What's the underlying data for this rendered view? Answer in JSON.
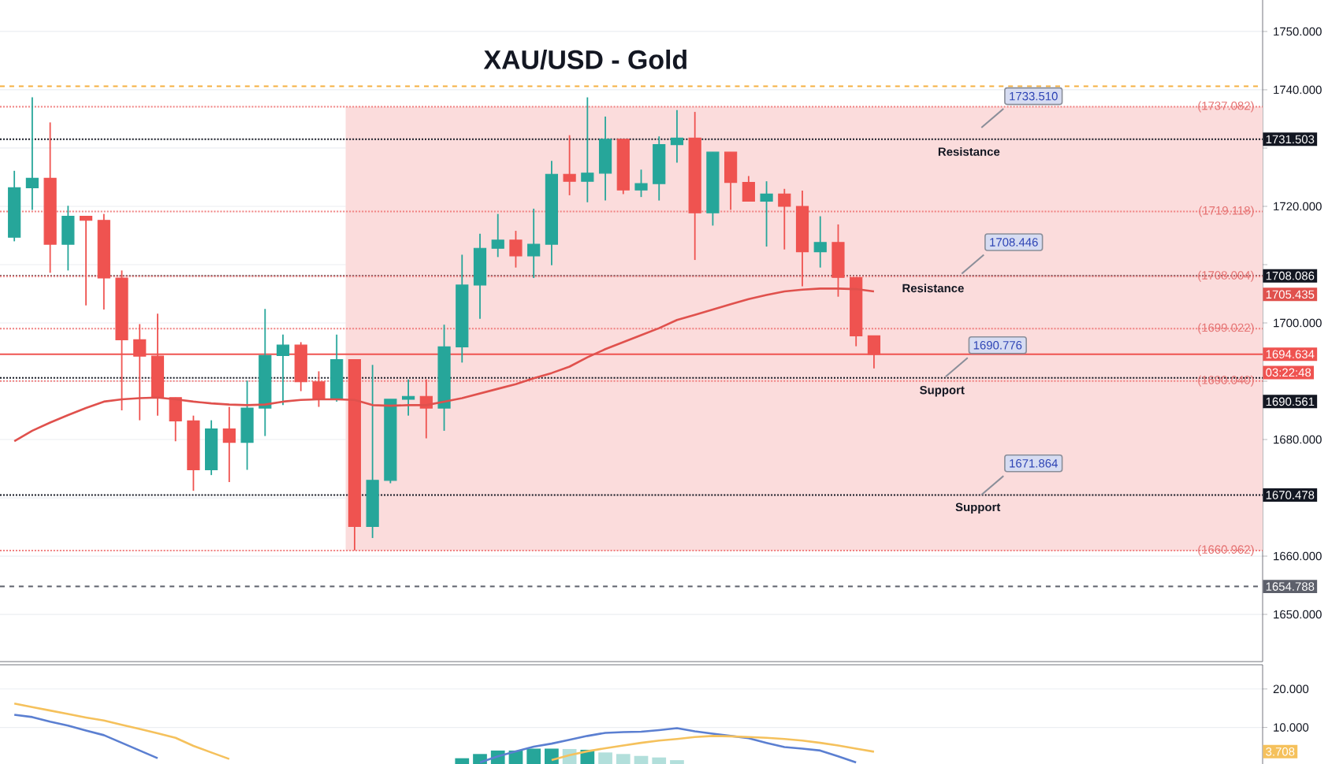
{
  "chart_data": [
    {
      "type": "candlestick",
      "title": "XAU/USD - Gold",
      "categories": [
        null,
        null,
        null,
        null,
        null,
        null,
        null,
        null,
        null,
        null,
        null,
        null,
        null,
        null,
        null,
        null,
        null,
        null,
        null,
        null,
        null,
        null,
        null,
        null,
        null,
        null,
        null,
        null,
        null,
        null,
        null,
        null,
        null,
        null,
        null,
        null,
        null,
        null,
        null,
        null,
        null,
        null,
        null,
        null,
        null,
        null,
        null,
        null,
        null,
        null,
        null,
        null,
        null,
        null,
        null,
        null,
        null,
        null,
        null,
        null,
        null,
        null,
        null,
        null,
        null,
        null,
        null,
        null,
        null,
        null
      ],
      "ohlc": [
        [
          1714.7,
          1726.1,
          1714.0,
          1723.2
        ],
        [
          1723.2,
          1738.7,
          1719.4,
          1724.8
        ],
        [
          1724.8,
          1734.4,
          1708.6,
          1713.5
        ],
        [
          1713.5,
          1720.1,
          1709.0,
          1718.3
        ],
        [
          1718.3,
          1718.3,
          1703.0,
          1717.6
        ],
        [
          1717.6,
          1718.7,
          1702.3,
          1707.7
        ],
        [
          1707.7,
          1709.0,
          1685.0,
          1697.1
        ],
        [
          1697.1,
          1699.8,
          1683.3,
          1694.3
        ],
        [
          1694.3,
          1701.6,
          1684.1,
          1687.2
        ],
        [
          1687.2,
          1687.2,
          1679.7,
          1683.2
        ],
        [
          1683.2,
          1684.1,
          1671.2,
          1674.8
        ],
        [
          1674.8,
          1683.3,
          1673.9,
          1681.8
        ],
        [
          1681.8,
          1685.6,
          1672.7,
          1679.5
        ],
        [
          1679.5,
          1690.1,
          1674.8,
          1685.4
        ],
        [
          1685.4,
          1702.4,
          1680.6,
          1694.4
        ],
        [
          1694.4,
          1698.0,
          1685.9,
          1696.2
        ],
        [
          1696.2,
          1696.7,
          1688.3,
          1689.9
        ],
        [
          1689.9,
          1691.7,
          1685.6,
          1686.9
        ],
        [
          1686.9,
          1698.0,
          1686.5,
          1693.7
        ],
        [
          1693.7,
          1693.7,
          1661.0,
          1665.1
        ],
        [
          1665.1,
          1692.8,
          1663.1,
          1673.0
        ],
        [
          1673.0,
          1686.9,
          1672.5,
          1686.9
        ],
        [
          1686.9,
          1690.3,
          1684.1,
          1687.4
        ],
        [
          1687.4,
          1690.3,
          1680.2,
          1685.4
        ],
        [
          1685.4,
          1699.7,
          1681.5,
          1695.9
        ],
        [
          1695.9,
          1711.7,
          1693.2,
          1706.5
        ],
        [
          1706.5,
          1715.3,
          1700.7,
          1712.8
        ],
        [
          1712.8,
          1718.7,
          1711.3,
          1714.2
        ],
        [
          1714.2,
          1715.8,
          1709.5,
          1711.5
        ],
        [
          1711.5,
          1719.6,
          1707.7,
          1713.5
        ],
        [
          1713.5,
          1727.8,
          1709.9,
          1725.5
        ],
        [
          1725.5,
          1732.2,
          1721.9,
          1724.3
        ],
        [
          1724.3,
          1738.7,
          1720.7,
          1725.7
        ],
        [
          1725.7,
          1735.4,
          1721.0,
          1731.5
        ],
        [
          1731.5,
          1731.5,
          1722.1,
          1722.8
        ],
        [
          1722.8,
          1726.3,
          1721.6,
          1723.9
        ],
        [
          1723.9,
          1732.0,
          1721.0,
          1730.6
        ],
        [
          1730.6,
          1736.5,
          1727.5,
          1731.7
        ],
        [
          1731.7,
          1736.2,
          1710.8,
          1718.9
        ],
        [
          1718.9,
          1729.3,
          1716.7,
          1729.3
        ],
        [
          1729.3,
          1729.3,
          1719.4,
          1724.1
        ],
        [
          1724.1,
          1725.2,
          1720.9,
          1720.9
        ],
        [
          1720.9,
          1724.3,
          1713.1,
          1722.1
        ],
        [
          1722.1,
          1723.0,
          1712.6,
          1720.0
        ],
        [
          1720.0,
          1722.7,
          1706.3,
          1712.2
        ],
        [
          1712.2,
          1718.3,
          1709.5,
          1713.8
        ],
        [
          1713.8,
          1716.9,
          1704.5,
          1707.8
        ],
        [
          1707.8,
          1707.8,
          1696.0,
          1697.8
        ],
        [
          1697.8,
          1697.8,
          1692.2,
          1694.6
        ],
        null,
        null,
        null,
        null,
        null,
        null,
        null,
        null,
        null,
        null,
        null,
        null,
        null,
        null,
        null,
        null,
        null,
        null,
        null,
        null,
        null
      ],
      "series": [
        {
          "type": "line",
          "color": "#e0514d",
          "values": [
            1679.7,
            1681.5,
            1682.9,
            1684.2,
            1685.4,
            1686.5,
            1686.9,
            1687.1,
            1687.2,
            1686.9,
            1686.5,
            1686.2,
            1686.0,
            1685.9,
            1686.0,
            1686.5,
            1686.8,
            1686.9,
            1686.9,
            1686.8,
            1685.9,
            1685.8,
            1685.9,
            1685.9,
            1686.5,
            1687.1,
            1687.9,
            1688.7,
            1689.5,
            1690.5,
            1691.4,
            1692.5,
            1694.1,
            1695.5,
            1696.7,
            1697.9,
            1699.1,
            1700.5,
            1701.4,
            1702.3,
            1703.2,
            1704.1,
            1704.8,
            1705.4,
            1705.7,
            1705.9,
            1705.9,
            1705.8,
            1705.4,
            null,
            null,
            null,
            null,
            null,
            null,
            null,
            null,
            null,
            null,
            null,
            null,
            null,
            null,
            null,
            null,
            null,
            null,
            null,
            null,
            null
          ]
        }
      ],
      "ylim": [
        1641.9,
        1755.4
      ],
      "yticks": [
        {
          "value": 1650,
          "label": "1650.000"
        },
        {
          "value": 1660,
          "label": "1660.000"
        },
        {
          "value": 1670,
          "label": null
        },
        {
          "value": 1680,
          "label": "1680.000"
        },
        {
          "value": 1690,
          "label": null
        },
        {
          "value": 1700,
          "label": "1700.000"
        },
        {
          "value": 1710,
          "label": null
        },
        {
          "value": 1720,
          "label": "1720.000"
        },
        {
          "value": 1730,
          "label": null
        },
        {
          "value": 1740,
          "label": "1740.000"
        },
        {
          "value": 1750,
          "label": "1750.000"
        }
      ],
      "grid": "y",
      "tick_labels": "y",
      "bands": [
        {
          "axis": "y",
          "from": 1660.962,
          "to": 1737.082,
          "color": "#fbdcdc"
        }
      ],
      "ref_lines": [
        {
          "axis": "y",
          "value": 1731.503,
          "label": "1731.503",
          "color": "#131722",
          "line_style": "dotted"
        },
        {
          "axis": "y",
          "value": 1708.086,
          "label": "1708.086",
          "color": "#131722",
          "line_style": "dotted"
        },
        {
          "axis": "y",
          "value": 1690.561,
          "label": "1690.561",
          "color": "#131722",
          "line_style": "dotted"
        },
        {
          "axis": "y",
          "value": 1670.478,
          "label": "1670.478",
          "color": "#131722",
          "line_style": "dotted"
        },
        {
          "axis": "y",
          "value": 1694.634,
          "label": "1694.634",
          "color": "#ef5350",
          "line_style": "solid"
        },
        {
          "axis": "y",
          "value": 1654.788,
          "label": "1654.788",
          "color": "#5d606b",
          "line_style": "dashed"
        },
        {
          "axis": "y",
          "value": 1740.6,
          "color": "#f5b041",
          "line_style": "dashed"
        },
        {
          "axis": "y",
          "value": 1737.082,
          "color": "#f08080",
          "line_style": "dotted"
        },
        {
          "axis": "y",
          "value": 1719.118,
          "color": "#f08080",
          "line_style": "dotted"
        },
        {
          "axis": "y",
          "value": 1708.004,
          "color": "#f08080",
          "line_style": "dotted"
        },
        {
          "axis": "y",
          "value": 1699.022,
          "color": "#f08080",
          "line_style": "dotted"
        },
        {
          "axis": "y",
          "value": 1690.04,
          "color": "#f08080",
          "line_style": "dotted"
        },
        {
          "axis": "y",
          "value": 1660.962,
          "color": "#f08080",
          "line_style": "dotted"
        }
      ],
      "annotations": [
        "1733.510",
        {
          "text": "1708.446",
          "y": 1708.446
        },
        {
          "text": "1690.776",
          "y": 1690.776
        },
        "1671.864",
        {
          "text": "Resistance",
          "y": 1731.503
        },
        {
          "text": "Resistance",
          "y": 1708.086
        },
        {
          "text": "Support",
          "y": 1690.561
        },
        {
          "text": "Support",
          "y": 1670.478
        },
        {
          "text": "(1737.082)",
          "y": 1737.082
        },
        {
          "text": "(1719.118)",
          "y": 1719.118
        },
        {
          "text": "(1708.004)",
          "y": 1708.004
        },
        {
          "text": "(1699.022)",
          "y": 1699.022
        },
        {
          "text": "(1690.040)",
          "y": 1690.04
        },
        {
          "text": "(1660.962)",
          "y": 1660.962
        },
        "1705.435",
        "03:22:48"
      ]
    },
    {
      "type": "bar",
      "categories": [
        null,
        null,
        null,
        null,
        null,
        null,
        null,
        null,
        null,
        null,
        null,
        null,
        null,
        null,
        null,
        null,
        null,
        null,
        null,
        null,
        null,
        null,
        null,
        null,
        null,
        null,
        null,
        null,
        null,
        null,
        null,
        null,
        null,
        null,
        null,
        null,
        null,
        null,
        null,
        null,
        null,
        null,
        null,
        null,
        null,
        null,
        null,
        null,
        null,
        null,
        null,
        null,
        null,
        null,
        null,
        null,
        null,
        null,
        null,
        null,
        null,
        null,
        null,
        null,
        null,
        null,
        null,
        null,
        null,
        null
      ],
      "series": [
        {
          "type": "bar",
          "colors": [
            null,
            null,
            null,
            null,
            null,
            null,
            null,
            null,
            null,
            null,
            null,
            null,
            null,
            null,
            null,
            null,
            null,
            null,
            null,
            null,
            null,
            null,
            null,
            null,
            null,
            "#26a69a",
            "#26a69a",
            "#26a69a",
            "#26a69a",
            "#26a69a",
            "#26a69a",
            "#b2dfdb",
            "#26a69a",
            "#b2dfdb",
            "#b2dfdb",
            "#b2dfdb",
            "#b2dfdb",
            "#b2dfdb",
            null,
            null,
            null,
            null,
            null,
            null,
            null,
            null,
            null,
            null,
            null,
            null,
            null,
            null,
            null,
            null,
            null,
            null,
            null,
            null,
            null,
            null,
            null,
            null,
            null,
            null,
            null,
            null,
            null,
            null,
            null,
            null
          ],
          "values": [
            null,
            null,
            null,
            null,
            null,
            null,
            null,
            null,
            null,
            null,
            null,
            null,
            null,
            null,
            null,
            null,
            null,
            null,
            null,
            null,
            null,
            null,
            null,
            null,
            null,
            2.0,
            3.1,
            4.0,
            4.0,
            4.5,
            4.5,
            4.4,
            4.2,
            3.5,
            3.1,
            2.6,
            2.2,
            1.5,
            null,
            null,
            null,
            null,
            null,
            null,
            null,
            null,
            null,
            null,
            null,
            null,
            null,
            null,
            null,
            null,
            null,
            null,
            null,
            null,
            null,
            null,
            null,
            null,
            null,
            null,
            null,
            null,
            null,
            null,
            null,
            null
          ]
        },
        {
          "type": "line",
          "color": "#5b7fd1",
          "values": [
            13.3,
            12.7,
            11.5,
            10.5,
            9.2,
            8.0,
            6.0,
            4.0,
            2.0,
            null,
            null,
            null,
            null,
            null,
            null,
            null,
            null,
            null,
            null,
            null,
            null,
            null,
            null,
            null,
            null,
            null,
            0.9,
            2.5,
            3.8,
            5.0,
            5.8,
            6.8,
            7.8,
            8.6,
            8.8,
            8.9,
            9.3,
            9.8,
            9.0,
            8.4,
            7.8,
            7.2,
            6.0,
            4.9,
            4.5,
            4.0,
            2.5,
            0.9,
            null,
            null,
            null,
            null,
            null,
            null,
            null,
            null,
            null,
            null,
            null,
            null,
            null,
            null,
            null,
            null,
            null,
            null,
            null,
            null,
            null,
            null
          ]
        },
        {
          "type": "line",
          "color": "#f5c15c",
          "values": [
            16.2,
            15.3,
            14.4,
            13.5,
            12.6,
            11.8,
            10.7,
            9.6,
            8.5,
            7.3,
            5.2,
            3.5,
            1.8,
            null,
            null,
            null,
            null,
            null,
            null,
            null,
            null,
            null,
            null,
            null,
            null,
            null,
            null,
            null,
            null,
            null,
            1.5,
            2.8,
            3.8,
            4.6,
            5.3,
            6.0,
            6.6,
            7.0,
            7.5,
            7.8,
            7.7,
            7.5,
            7.3,
            7.0,
            6.6,
            6.0,
            5.3,
            4.5,
            3.7,
            null,
            null,
            null,
            null,
            null,
            null,
            null,
            null,
            null,
            null,
            null,
            null,
            null,
            null,
            null,
            null,
            null,
            null,
            null,
            null,
            null
          ]
        }
      ],
      "ylim": [
        0.5,
        26.3
      ],
      "yticks": [
        {
          "value": 10,
          "label": "10.000"
        },
        {
          "value": 20,
          "label": "20.000"
        }
      ],
      "grid": "y",
      "tick_labels": "y",
      "annotations": [
        {
          "text": "3.708",
          "y": 3.708
        }
      ]
    }
  ]
}
